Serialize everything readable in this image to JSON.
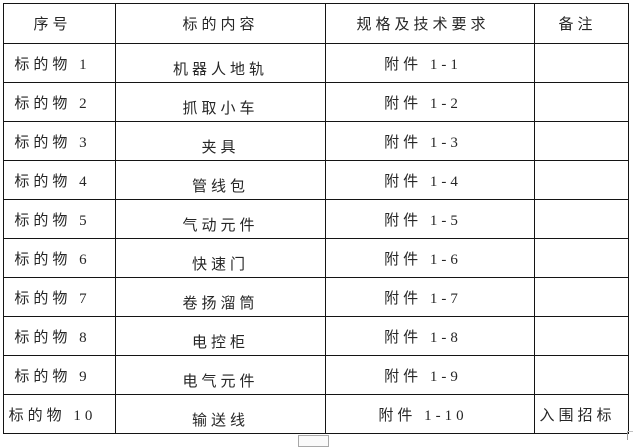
{
  "colors": {
    "background": "#ffffff",
    "table_border": "#141414",
    "text": "#262626",
    "artifact_gray": "#a8a8a8"
  },
  "table": {
    "headers": [
      "序号",
      "标的内容",
      "规格及技术要求",
      "备注"
    ],
    "rows": [
      {
        "seq": "标的物 1",
        "content": "机器人地轨",
        "spec": "附件 1-1",
        "remark": ""
      },
      {
        "seq": "标的物 2",
        "content": "抓取小车",
        "spec": "附件 1-2",
        "remark": ""
      },
      {
        "seq": "标的物 3",
        "content": "夹具",
        "spec": "附件 1-3",
        "remark": ""
      },
      {
        "seq": "标的物 4",
        "content": "管线包",
        "spec": "附件 1-4",
        "remark": ""
      },
      {
        "seq": "标的物 5",
        "content": "气动元件",
        "spec": "附件 1-5",
        "remark": ""
      },
      {
        "seq": "标的物 6",
        "content": "快速门",
        "spec": "附件 1-6",
        "remark": ""
      },
      {
        "seq": "标的物 7",
        "content": "卷扬溜筒",
        "spec": "附件 1-7",
        "remark": ""
      },
      {
        "seq": "标的物 8",
        "content": "电控柜",
        "spec": "附件 1-8",
        "remark": ""
      },
      {
        "seq": "标的物 9",
        "content": "电气元件",
        "spec": "附件 1-9",
        "remark": ""
      },
      {
        "seq": "标的物 10",
        "content": "输送线",
        "spec": "附件 1-10",
        "remark": "入围招标"
      }
    ]
  }
}
